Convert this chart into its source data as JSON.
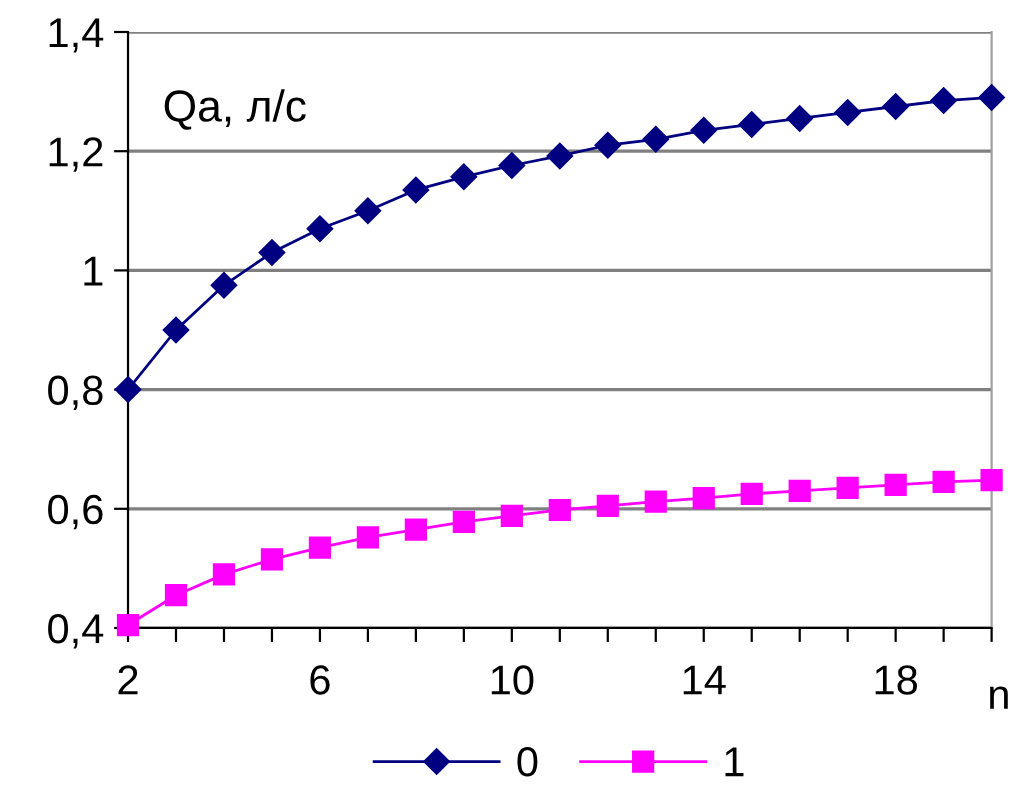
{
  "chart_data": {
    "type": "line",
    "ylabel": "Qa, л/с",
    "xlabel": "n",
    "x": [
      2,
      3,
      4,
      5,
      6,
      7,
      8,
      9,
      10,
      11,
      12,
      13,
      14,
      15,
      16,
      17,
      18,
      19,
      20
    ],
    "series": [
      {
        "name": "0",
        "color": "#000080",
        "marker": "diamond",
        "values": [
          0.8,
          0.9,
          0.975,
          1.03,
          1.07,
          1.1,
          1.135,
          1.157,
          1.176,
          1.192,
          1.21,
          1.22,
          1.235,
          1.245,
          1.255,
          1.265,
          1.275,
          1.285,
          1.29
        ]
      },
      {
        "name": "1",
        "color": "#ff00ff",
        "marker": "square",
        "values": [
          0.405,
          0.455,
          0.49,
          0.515,
          0.535,
          0.552,
          0.565,
          0.578,
          0.588,
          0.598,
          0.605,
          0.612,
          0.618,
          0.625,
          0.63,
          0.635,
          0.64,
          0.645,
          0.648
        ]
      }
    ],
    "xlim": [
      2,
      20
    ],
    "ylim": [
      0.4,
      1.4
    ],
    "xticks": [
      2,
      {
        "value": 3,
        "label": null
      },
      {
        "value": 4,
        "label": null
      },
      {
        "value": 5,
        "label": null
      },
      6,
      {
        "value": 7,
        "label": null
      },
      {
        "value": 8,
        "label": null
      },
      {
        "value": 9,
        "label": null
      },
      10,
      {
        "value": 11,
        "label": null
      },
      {
        "value": 12,
        "label": null
      },
      {
        "value": 13,
        "label": null
      },
      14,
      {
        "value": 15,
        "label": null
      },
      {
        "value": 16,
        "label": null
      },
      {
        "value": 17,
        "label": null
      },
      18,
      {
        "value": 19,
        "label": null
      },
      {
        "value": 20,
        "label": null
      }
    ],
    "yticks": [
      {
        "value": 0.4,
        "label": "0,4"
      },
      {
        "value": 0.6,
        "label": "0,6"
      },
      {
        "value": 0.8,
        "label": "0,8"
      },
      1,
      {
        "value": 1.2,
        "label": "1,2"
      },
      {
        "value": 1.4,
        "label": "1,4"
      }
    ],
    "grid": "y",
    "legend": "bottom",
    "line_style": "solid"
  }
}
